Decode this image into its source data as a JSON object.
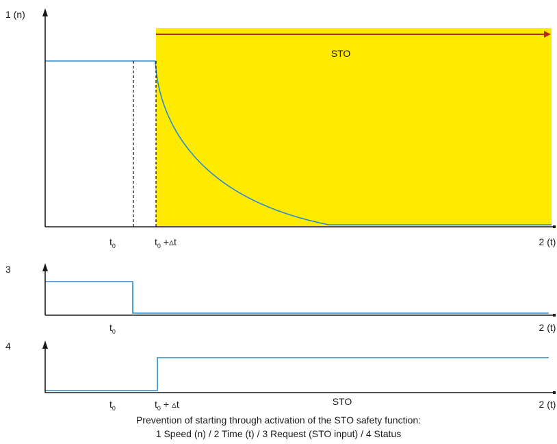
{
  "colors": {
    "sto_area": "#ffeb00",
    "signal": "#2a8ad0",
    "arrow": "#b8261e",
    "axis": "#1a1a1a"
  },
  "plot1": {
    "y_label": "1 (n)",
    "x_label": "2 (t)",
    "t0": "t",
    "t0_sub": "0",
    "t0_dt_sub": "0",
    "t0_dt_rest": " +▵t",
    "area_label": "STO"
  },
  "plot3": {
    "y_label": "3",
    "x_label": "2 (t)",
    "t0": "t",
    "t0_sub": "0"
  },
  "plot4": {
    "y_label": "4",
    "x_label": "2 (t)",
    "t0": "t",
    "t0_sub": "0",
    "t0_dt_sub": "0",
    "t0_dt_rest": " + ▵t",
    "mid_label": "STO"
  },
  "caption": {
    "line1": "Prevention of starting through activation of the STO safety function:",
    "line2": "1 Speed (n) / 2 Time (t) / 3 Request (STO input) / 4 Status"
  }
}
